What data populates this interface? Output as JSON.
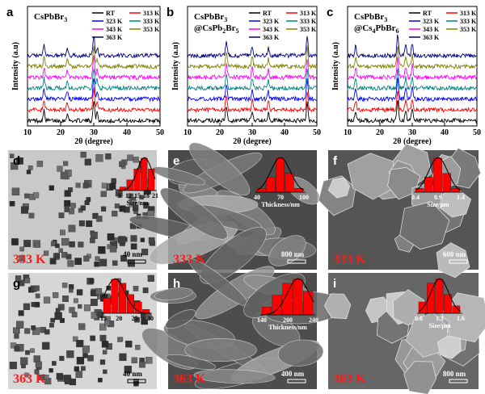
{
  "xrd": {
    "panels": [
      {
        "letter": "a",
        "sample_title": "CsPbBr",
        "sample_title_sub": "3",
        "sample_title_line2": "",
        "sample_title_line2_sub_a": "",
        "sample_title_line2_sub_b": ""
      },
      {
        "letter": "b",
        "sample_title": "CsPbBr",
        "sample_title_sub": "3",
        "sample_title_line2": "@CsPb",
        "sample_title_line2_sub_a": "2",
        "sample_title_line2_mid": "Br",
        "sample_title_line2_sub_b": "5"
      },
      {
        "letter": "c",
        "sample_title": "CsPbBr",
        "sample_title_sub": "3",
        "sample_title_line2": "@Cs",
        "sample_title_line2_sub_a": "4",
        "sample_title_line2_mid": "PbBr",
        "sample_title_line2_sub_b": "6"
      }
    ],
    "y_axis_label": "Intensity (a.u)",
    "x_axis_label": "2θ (degree)",
    "x_ticks": [
      "10",
      "20",
      "30",
      "40",
      "50"
    ],
    "legend": [
      {
        "label": "RT",
        "color": "#000000"
      },
      {
        "label": "313 K",
        "color": "#ff0000"
      },
      {
        "label": "323 K",
        "color": "#0000ff"
      },
      {
        "label": "333 K",
        "color": "#008080"
      },
      {
        "label": "343 K",
        "color": "#ff00ff"
      },
      {
        "label": "353 K",
        "color": "#808000"
      },
      {
        "label": "363 K",
        "color": "#000080"
      }
    ]
  },
  "chart_data": [
    {
      "type": "line",
      "panel": "a",
      "xlabel": "2θ (degree)",
      "ylabel": "Intensity (a.u)",
      "xlim": [
        10,
        50
      ],
      "x": [
        10,
        15,
        20,
        22,
        25,
        30,
        31,
        34,
        38,
        44,
        50
      ],
      "series": [
        {
          "name": "RT",
          "values": [
            0.3,
            1.6,
            0.5,
            1.2,
            0.4,
            3.5,
            1.4,
            0.4,
            0.4,
            0.6,
            0.3
          ]
        },
        {
          "name": "313 K",
          "values": [
            0.3,
            1.6,
            0.5,
            1.2,
            0.4,
            3.5,
            1.4,
            0.4,
            0.4,
            0.6,
            0.3
          ]
        },
        {
          "name": "323 K",
          "values": [
            0.3,
            1.6,
            0.5,
            1.2,
            0.4,
            3.5,
            1.4,
            0.4,
            0.4,
            0.6,
            0.3
          ]
        },
        {
          "name": "333 K",
          "values": [
            0.3,
            1.6,
            0.5,
            1.2,
            0.4,
            3.5,
            1.4,
            0.4,
            0.4,
            0.6,
            0.3
          ]
        },
        {
          "name": "343 K",
          "values": [
            0.3,
            1.6,
            0.5,
            1.2,
            0.4,
            3.5,
            1.4,
            0.4,
            0.4,
            0.6,
            0.3
          ]
        },
        {
          "name": "353 K",
          "values": [
            0.3,
            1.6,
            0.5,
            1.2,
            0.4,
            3.5,
            1.4,
            0.4,
            0.4,
            0.6,
            0.3
          ]
        },
        {
          "name": "363 K",
          "values": [
            0.3,
            1.6,
            0.5,
            1.2,
            0.4,
            3.5,
            1.4,
            0.4,
            0.4,
            0.6,
            0.3
          ]
        }
      ]
    },
    {
      "type": "line",
      "panel": "b",
      "xlabel": "2θ (degree)",
      "ylabel": "Intensity (a.u)",
      "xlim": [
        10,
        50
      ],
      "x": [
        10,
        12,
        20,
        22,
        25,
        30,
        35,
        38,
        44,
        47,
        50
      ],
      "series": [
        {
          "name": "RT",
          "values": [
            0.2,
            0.6,
            0.3,
            2.5,
            0.5,
            1.6,
            1.2,
            0.5,
            0.5,
            3.2,
            0.2
          ]
        },
        {
          "name": "313 K",
          "values": [
            0.2,
            0.6,
            0.3,
            2.5,
            0.5,
            1.6,
            1.2,
            0.5,
            0.5,
            3.2,
            0.2
          ]
        },
        {
          "name": "323 K",
          "values": [
            0.2,
            0.6,
            0.3,
            2.5,
            0.5,
            1.6,
            1.2,
            0.5,
            0.5,
            3.2,
            0.2
          ]
        },
        {
          "name": "333 K",
          "values": [
            0.2,
            0.6,
            0.3,
            2.5,
            0.5,
            1.6,
            1.2,
            0.5,
            0.5,
            3.2,
            0.2
          ]
        },
        {
          "name": "343 K",
          "values": [
            0.2,
            0.6,
            0.3,
            2.5,
            0.5,
            1.6,
            1.2,
            0.5,
            0.5,
            3.2,
            0.2
          ]
        },
        {
          "name": "353 K",
          "values": [
            0.2,
            0.6,
            0.3,
            2.5,
            0.5,
            1.6,
            1.2,
            0.5,
            0.5,
            3.2,
            0.2
          ]
        },
        {
          "name": "363 K",
          "values": [
            0.2,
            0.6,
            0.3,
            2.5,
            0.5,
            1.6,
            1.2,
            0.5,
            0.5,
            3.2,
            0.2
          ]
        }
      ]
    },
    {
      "type": "line",
      "panel": "c",
      "xlabel": "2θ (degree)",
      "ylabel": "Intensity (a.u)",
      "xlim": [
        10,
        50
      ],
      "x": [
        10,
        12.5,
        20,
        22.5,
        25.5,
        28,
        30,
        34,
        39,
        45,
        50
      ],
      "series": [
        {
          "name": "RT",
          "values": [
            0.2,
            1.6,
            0.3,
            0.8,
            3.5,
            1.8,
            2.0,
            0.6,
            0.8,
            0.5,
            0.2
          ]
        },
        {
          "name": "313 K",
          "values": [
            0.2,
            1.6,
            0.3,
            0.8,
            3.5,
            1.8,
            2.0,
            0.6,
            0.8,
            0.5,
            0.2
          ]
        },
        {
          "name": "323 K",
          "values": [
            0.2,
            1.6,
            0.3,
            0.8,
            3.5,
            1.8,
            2.0,
            0.6,
            0.8,
            0.5,
            0.2
          ]
        },
        {
          "name": "333 K",
          "values": [
            0.2,
            1.6,
            0.3,
            0.8,
            3.5,
            1.8,
            2.0,
            0.6,
            0.8,
            0.5,
            0.2
          ]
        },
        {
          "name": "343 K",
          "values": [
            0.2,
            1.6,
            0.3,
            0.8,
            3.5,
            1.8,
            2.0,
            0.6,
            0.8,
            0.5,
            0.2
          ]
        },
        {
          "name": "353 K",
          "values": [
            0.2,
            1.6,
            0.3,
            0.8,
            3.5,
            1.8,
            2.0,
            0.6,
            0.8,
            0.5,
            0.2
          ]
        },
        {
          "name": "363 K",
          "values": [
            0.2,
            1.6,
            0.3,
            0.8,
            3.5,
            1.8,
            2.0,
            0.6,
            0.8,
            0.5,
            0.2
          ]
        }
      ]
    },
    {
      "type": "bar",
      "panel": "d",
      "xlabel": "Size/nm",
      "categories": [
        "9",
        "12",
        "15",
        "18",
        "21"
      ],
      "values": [
        1,
        3,
        6,
        9,
        6
      ],
      "tick_labels": [
        "9",
        "12",
        "15",
        "18",
        "21"
      ]
    },
    {
      "type": "bar",
      "panel": "e",
      "xlabel": "Thickness/nm",
      "categories": [
        "40",
        "55",
        "70",
        "85",
        "100"
      ],
      "values": [
        1,
        4,
        9,
        5,
        1
      ],
      "tick_labels": [
        "40",
        "70",
        "100"
      ]
    },
    {
      "type": "bar",
      "panel": "f",
      "xlabel": "Size/μm",
      "categories": [
        "0.4",
        "0.6",
        "0.9",
        "1.1",
        "1.4"
      ],
      "values": [
        1,
        4,
        9,
        5,
        1
      ],
      "tick_labels": [
        "0.4",
        "0.9",
        "1.4"
      ]
    },
    {
      "type": "bar",
      "panel": "g",
      "xlabel": "",
      "categories": [
        "15",
        "18",
        "20",
        "23",
        "25",
        "30"
      ],
      "values": [
        4,
        9,
        8,
        5,
        3,
        1
      ],
      "tick_labels": [
        "15",
        "20",
        "25",
        "30"
      ]
    },
    {
      "type": "bar",
      "panel": "h",
      "xlabel": "Thickness/nm",
      "categories": [
        "140",
        "170",
        "200",
        "220",
        "240"
      ],
      "values": [
        2,
        5,
        8,
        9,
        6
      ],
      "tick_labels": [
        "140",
        "200",
        "240"
      ]
    },
    {
      "type": "bar",
      "panel": "i",
      "xlabel": "Size/μm",
      "categories": [
        "0.6",
        "0.9",
        "1.1",
        "1.3",
        "1.6"
      ],
      "values": [
        3,
        8,
        9,
        5,
        2
      ],
      "tick_labels": [
        "0.6",
        "1.1",
        "1.6"
      ]
    }
  ],
  "micrographs": [
    {
      "letter": "d",
      "temp": "333 K",
      "scale": "40 nm"
    },
    {
      "letter": "e",
      "temp": "333 K",
      "scale": "800 nm"
    },
    {
      "letter": "f",
      "temp": "333 K",
      "scale": "600 nm"
    },
    {
      "letter": "g",
      "temp": "363 K",
      "scale": "40 nm"
    },
    {
      "letter": "h",
      "temp": "363 K",
      "scale": "400 nm"
    },
    {
      "letter": "i",
      "temp": "363 K",
      "scale": "800 nm"
    }
  ],
  "colors": {
    "temp_label": "#ff1a1a",
    "hist_bar": "#ff0000",
    "fit_line": "#000000"
  }
}
